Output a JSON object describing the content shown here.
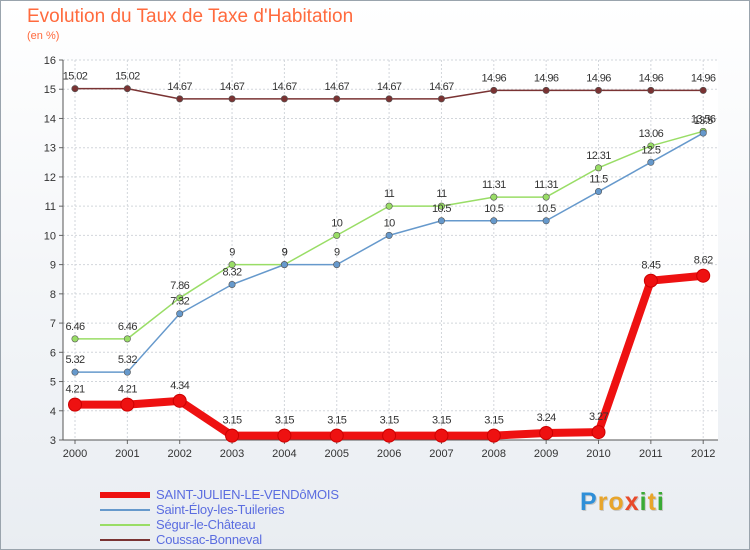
{
  "title": "Evolution du Taux de Taxe d'Habitation",
  "subtitle": "(en %)",
  "logo": {
    "text": "Proxiti",
    "letters": [
      {
        "ch": "P",
        "color": "#2f8fd8"
      },
      {
        "ch": "r",
        "color": "#e8a52b"
      },
      {
        "ch": "o",
        "color": "#e8a52b"
      },
      {
        "ch": "x",
        "color": "#e84a2b"
      },
      {
        "ch": "i",
        "color": "#3aaa35"
      },
      {
        "ch": "t",
        "color": "#e8a52b"
      },
      {
        "ch": "i",
        "color": "#3aaa35"
      }
    ]
  },
  "chart_data": {
    "type": "line",
    "title": "Evolution du Taux de Taxe d'Habitation",
    "ylabel": "(en %)",
    "xlabel": "",
    "x": [
      "2000",
      "2001",
      "2002",
      "2003",
      "2004",
      "2005",
      "2006",
      "2007",
      "2008",
      "2009",
      "2010",
      "2011",
      "2012"
    ],
    "ylim": [
      3,
      16
    ],
    "yticks": [
      3,
      4,
      5,
      6,
      7,
      8,
      9,
      10,
      11,
      12,
      13,
      14,
      15,
      16
    ],
    "grid": true,
    "legend": "bottom-left",
    "series": [
      {
        "name": "SAINT-JULIEN-LE-VENDôMOIS",
        "color": "#ee1111",
        "width": "thick",
        "values": [
          4.21,
          4.21,
          4.34,
          3.15,
          3.15,
          3.15,
          3.15,
          3.15,
          3.15,
          3.24,
          3.27,
          8.45,
          8.62
        ],
        "labels": [
          "4.21",
          "4.21",
          "4.34",
          "3.15",
          "3.15",
          "3.15",
          "3.15",
          "3.15",
          "3.15",
          "3.24",
          "3.27",
          "8.45",
          "8.62"
        ]
      },
      {
        "name": "Saint-Éloy-les-Tuileries",
        "color": "#6699cc",
        "width": "thin",
        "values": [
          5.32,
          5.32,
          7.32,
          8.32,
          9,
          9,
          10,
          10.5,
          10.5,
          10.5,
          11.5,
          12.5,
          13.5
        ],
        "labels": [
          "5.32",
          "5.32",
          "7.32",
          "8.32",
          "9",
          "9",
          "10",
          "10.5",
          "10.5",
          "10.5",
          "11.5",
          "12.5",
          "13.5"
        ]
      },
      {
        "name": "Ségur-le-Château",
        "color": "#99dd66",
        "width": "thin",
        "values": [
          6.46,
          6.46,
          7.86,
          9,
          9,
          10,
          11,
          11,
          11.31,
          11.31,
          12.31,
          13.06,
          13.56
        ],
        "labels": [
          "6.46",
          "6.46",
          "7.86",
          "9",
          "9",
          "10",
          "11",
          "11",
          "11.31",
          "11.31",
          "12.31",
          "13.06",
          "13.56"
        ]
      },
      {
        "name": "Coussac-Bonneval",
        "color": "#7a3333",
        "width": "thin",
        "values": [
          15.02,
          15.02,
          14.67,
          14.67,
          14.67,
          14.67,
          14.67,
          14.67,
          14.96,
          14.96,
          14.96,
          14.96,
          14.96
        ],
        "labels": [
          "15.02",
          "15.02",
          "14.67",
          "14.67",
          "14.67",
          "14.67",
          "14.67",
          "14.67",
          "14.96",
          "14.96",
          "14.96",
          "14.96",
          "14.96"
        ]
      }
    ]
  }
}
